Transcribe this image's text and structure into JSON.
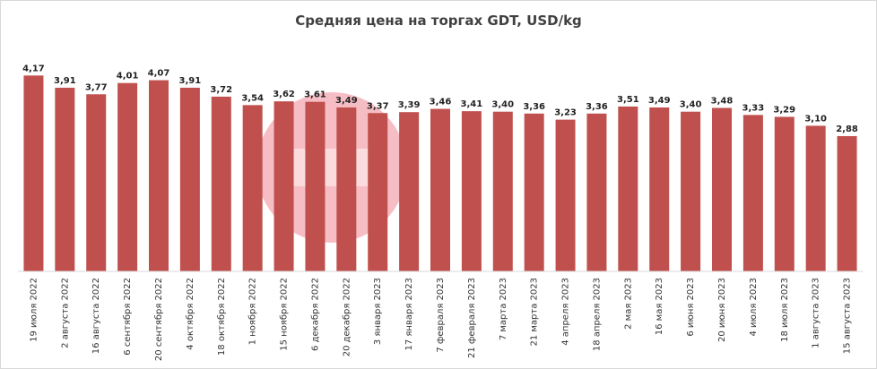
{
  "chart_data": {
    "type": "bar",
    "title": "Средняя цена на торгах GDT, USD/kg",
    "xlabel": "",
    "ylabel": "",
    "ylim": [
      0,
      4.5
    ],
    "grid": false,
    "legend": "none",
    "bar_color": "#c0504d",
    "categories": [
      "19 июля 2022",
      "2 августа 2022",
      "16 августа 2022",
      "6 сентября 2022",
      "20 сентября 2022",
      "4 октября 2022",
      "18 октября 2022",
      "1 ноября 2022",
      "15 ноября 2022",
      "6 декабря 2022",
      "20 декабря 2022",
      "3 января 2023",
      "17 января 2023",
      "7 февраля 2023",
      "21 февраля 2023",
      "7 марта 2023",
      "21 марта 2023",
      "4 апреля 2023",
      "18 апреля 2023",
      "2 мая 2023",
      "16 мая 2023",
      "6 июня 2023",
      "20 июня 2023",
      "4 июля 2023",
      "18 июля 2023",
      "1 августа 2023",
      "15 августа 2023"
    ],
    "values": [
      4.17,
      3.91,
      3.77,
      4.01,
      4.07,
      3.91,
      3.72,
      3.54,
      3.62,
      3.61,
      3.49,
      3.37,
      3.39,
      3.46,
      3.41,
      3.4,
      3.36,
      3.23,
      3.36,
      3.51,
      3.49,
      3.4,
      3.48,
      3.33,
      3.29,
      3.1,
      2.88
    ],
    "value_labels": [
      "4,17",
      "3,91",
      "3,77",
      "4,01",
      "4,07",
      "3,91",
      "3,72",
      "3,54",
      "3,62",
      "3,61",
      "3,49",
      "3,37",
      "3,39",
      "3,46",
      "3,41",
      "3,40",
      "3,36",
      "3,23",
      "3,36",
      "3,51",
      "3,49",
      "3,40",
      "3,48",
      "3,33",
      "3,29",
      "3,10",
      "2,88"
    ]
  }
}
